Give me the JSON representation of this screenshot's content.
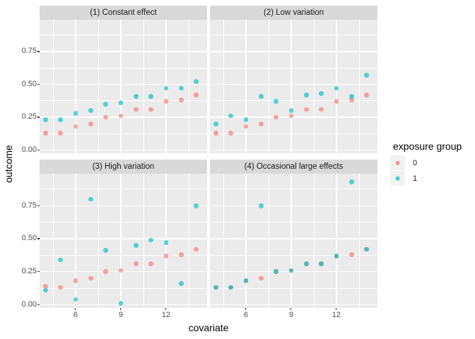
{
  "chart_data": {
    "type": "scatter",
    "title": "",
    "x_label": "covariate",
    "y_label": "outcome",
    "x": [
      4,
      5,
      6,
      7,
      8,
      9,
      10,
      11,
      12,
      13,
      14
    ],
    "x_ticks": [
      6,
      9,
      12
    ],
    "x_tick_labels": [
      "6",
      "9",
      "12"
    ],
    "y_ticks": [
      0,
      0.25,
      0.5,
      0.75
    ],
    "y_tick_labels": [
      "0.00",
      "0.25",
      "0.50",
      "0.75"
    ],
    "x_range": [
      3.6,
      14.7
    ],
    "y_range": [
      -0.025,
      0.99
    ],
    "grid": "white major and minor gridlines on gray panel",
    "facet_layout": "2x2",
    "point_alpha": 0.65,
    "colors": {
      "group0": "#F8766D",
      "group1": "#00BFC4",
      "panel_bg": "#EBEBEB",
      "strip_bg": "#D9D9D9",
      "grid": "#FFFFFF",
      "tick_label": "#4D4D4D"
    },
    "legend": {
      "title": "exposure group",
      "position": "right",
      "entries": [
        {
          "label": "0",
          "color": "#F8766D"
        },
        {
          "label": "1",
          "color": "#00BFC4"
        }
      ]
    },
    "panels": [
      {
        "title": "(1) Constant effect",
        "series": [
          {
            "name": "0",
            "values": [
              0.13,
              0.13,
              0.18,
              0.2,
              0.25,
              0.26,
              0.31,
              0.31,
              0.37,
              0.38,
              0.42
            ]
          },
          {
            "name": "1",
            "values": [
              0.23,
              0.23,
              0.28,
              0.3,
              0.35,
              0.36,
              0.41,
              0.41,
              0.47,
              0.47,
              0.52
            ]
          }
        ]
      },
      {
        "title": "(2) Low variation",
        "series": [
          {
            "name": "0",
            "values": [
              0.13,
              0.13,
              0.18,
              0.2,
              0.25,
              0.26,
              0.31,
              0.31,
              0.37,
              0.38,
              0.42
            ]
          },
          {
            "name": "1",
            "values": [
              0.2,
              0.26,
              0.23,
              0.41,
              0.37,
              0.3,
              0.42,
              0.43,
              0.47,
              0.41,
              0.57
            ]
          }
        ]
      },
      {
        "title": "(3) High variation",
        "series": [
          {
            "name": "0",
            "values": [
              0.14,
              0.13,
              0.18,
              0.2,
              0.25,
              0.26,
              0.31,
              0.31,
              0.37,
              0.38,
              0.42
            ]
          },
          {
            "name": "1",
            "values": [
              0.11,
              0.34,
              0.04,
              0.8,
              0.41,
              0.01,
              0.45,
              0.49,
              0.47,
              0.16,
              0.75
            ]
          }
        ]
      },
      {
        "title": "(4) Occasional large effects",
        "series": [
          {
            "name": "0",
            "values": [
              0.13,
              0.13,
              0.18,
              0.2,
              0.25,
              0.26,
              0.31,
              0.31,
              0.37,
              0.38,
              0.42
            ]
          },
          {
            "name": "1",
            "values": [
              0.13,
              0.13,
              0.18,
              0.75,
              0.25,
              0.26,
              0.31,
              0.31,
              0.37,
              0.93,
              0.42
            ]
          }
        ]
      }
    ]
  }
}
